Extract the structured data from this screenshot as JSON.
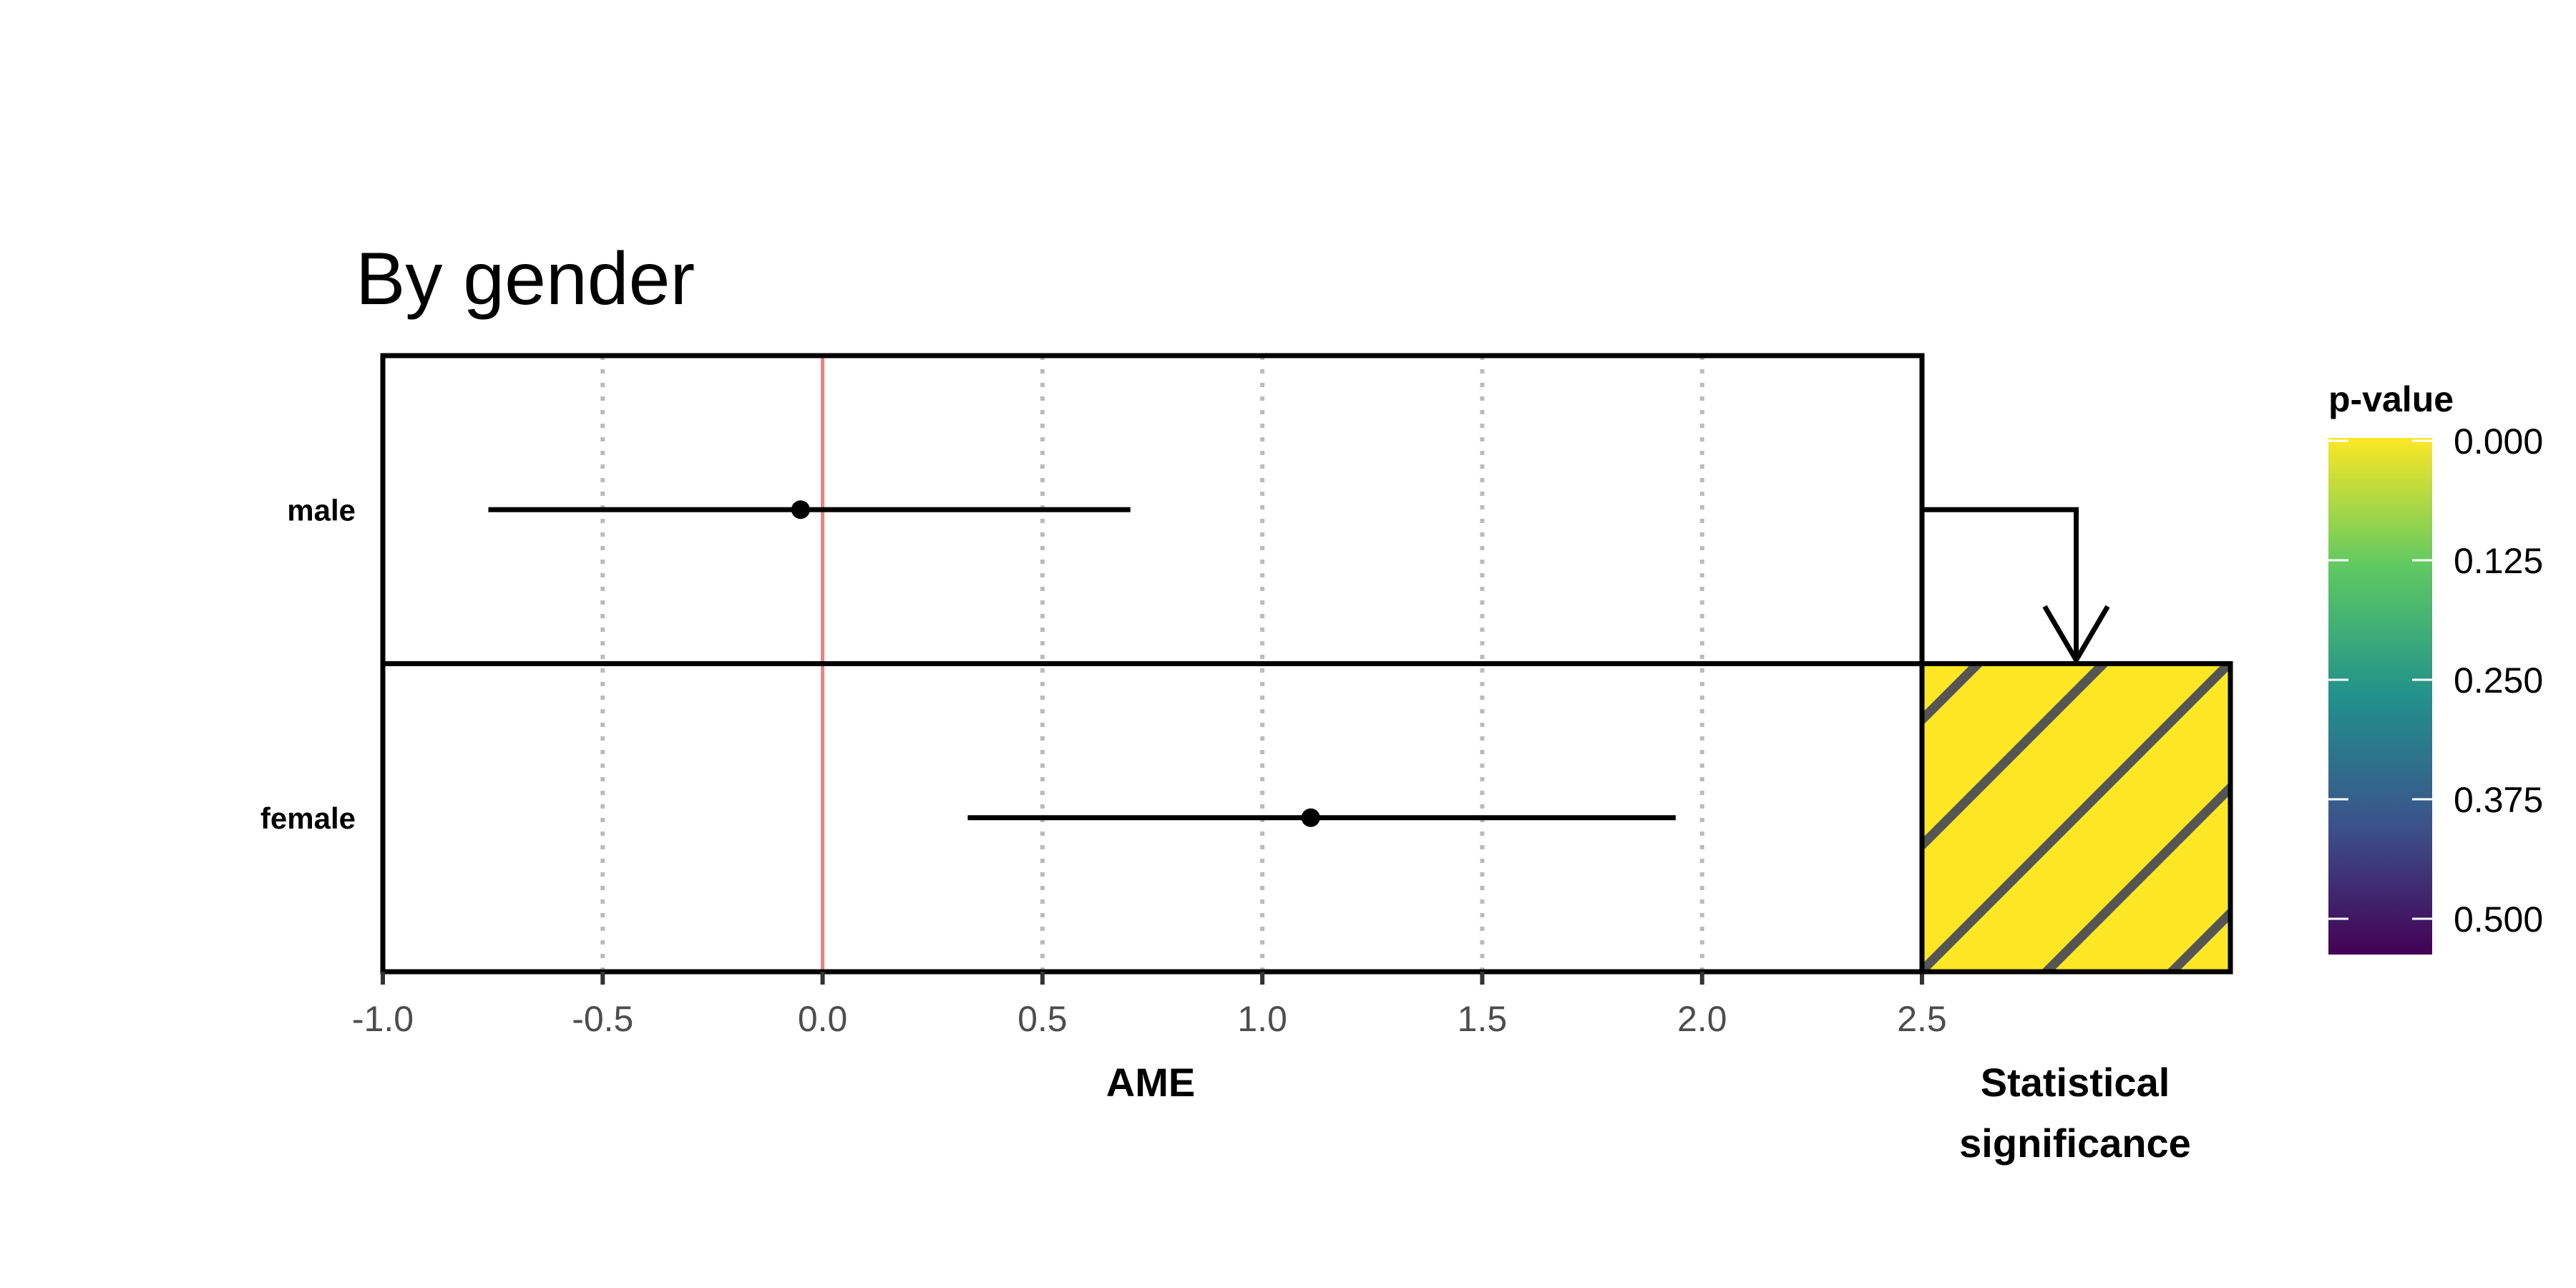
{
  "chart_data": {
    "type": "forest",
    "title": "By gender",
    "xlabel": "AME",
    "xlim": [
      -1.0,
      2.5
    ],
    "x_ticks": [
      -1.0,
      -0.5,
      0.0,
      0.5,
      1.0,
      1.5,
      2.0,
      2.5
    ],
    "x_tick_labels": [
      "-1.0",
      "-0.5",
      "0.0",
      "0.5",
      "1.0",
      "1.5",
      "2.0",
      "2.5"
    ],
    "reference_line": 0.0,
    "grid": "vertical dotted",
    "categories": [
      "male",
      "female"
    ],
    "estimates": [
      {
        "label": "male",
        "estimate": -0.05,
        "ci_low": -0.76,
        "ci_high": 0.7
      },
      {
        "label": "female",
        "estimate": 1.11,
        "ci_low": 0.33,
        "ci_high": 1.94
      }
    ],
    "significance_panel": {
      "title_lines": [
        "Statistical",
        "significance"
      ],
      "rows": [
        {
          "label": "male",
          "significant": false
        },
        {
          "label": "female",
          "significant": true,
          "p_value": 0.0,
          "hatched": true
        }
      ],
      "arrow": "from male row to female row"
    },
    "legend": {
      "title": "p-value",
      "placement": "right",
      "type": "colorbar",
      "colormap": "viridis",
      "range": [
        0.0,
        0.5
      ],
      "ticks": [
        0.0,
        0.125,
        0.25,
        0.375,
        0.5
      ],
      "tick_labels": [
        "0.000",
        "0.125",
        "0.250",
        "0.375",
        "0.500"
      ],
      "colors": [
        "#fde725",
        "#5ec962",
        "#21918c",
        "#3b528b",
        "#440154"
      ]
    },
    "colors": {
      "reference": "#f08080",
      "grid": "#bbbbbb",
      "point": "#000000",
      "hatch_fill": "#fde725",
      "hatch_stroke": "#555555"
    }
  }
}
